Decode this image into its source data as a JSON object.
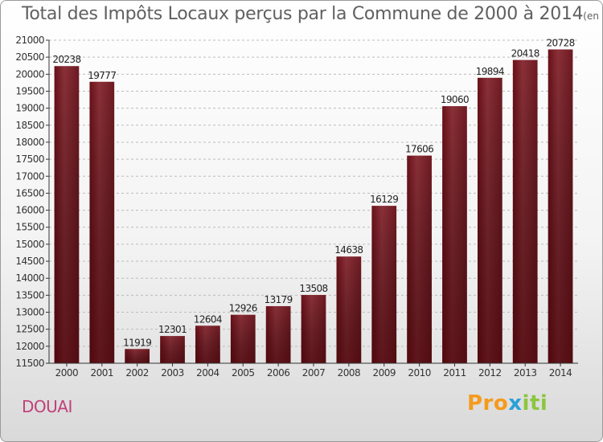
{
  "title": "Total des Impôts Locaux perçus par la Commune de 2000 à 2014",
  "title_unit": "(en milliers d'€)",
  "city": "DOUAI",
  "logo": {
    "part1": "Pro",
    "part2": "x",
    "part3": "iti"
  },
  "colors": {
    "bar_top": "#8a3038",
    "bar_bottom": "#5a0008",
    "axis": "#333333",
    "grid": "#bcbcbc"
  },
  "chart_data": {
    "type": "bar",
    "title": "Total des Impôts Locaux perçus par la Commune de 2000 à 2014",
    "xlabel": "",
    "ylabel": "en milliers d'€",
    "categories": [
      "2000",
      "2001",
      "2002",
      "2003",
      "2004",
      "2005",
      "2006",
      "2007",
      "2008",
      "2009",
      "2010",
      "2011",
      "2012",
      "2013",
      "2014"
    ],
    "values": [
      20238,
      19777,
      11919,
      12301,
      12604,
      12926,
      13179,
      13508,
      14638,
      16129,
      17606,
      19060,
      19894,
      20418,
      20728
    ],
    "ylim": [
      11500,
      21000
    ],
    "yticks": [
      11500,
      12000,
      12500,
      13000,
      13500,
      14000,
      14500,
      15000,
      15500,
      16000,
      16500,
      17000,
      17500,
      18000,
      18500,
      19000,
      19500,
      20000,
      20500,
      21000
    ],
    "grid": true
  }
}
